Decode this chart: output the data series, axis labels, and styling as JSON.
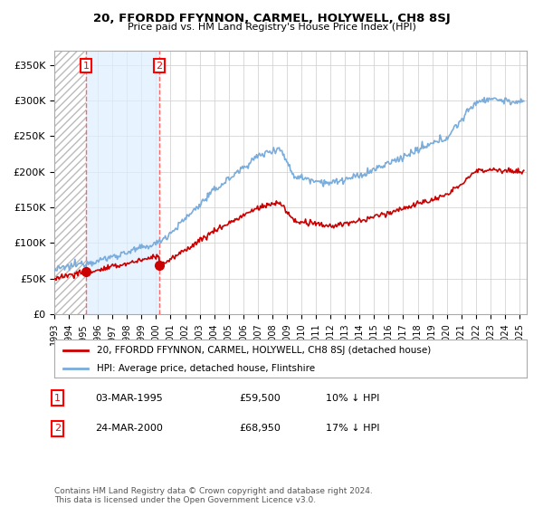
{
  "title": "20, FFORDD FFYNNON, CARMEL, HOLYWELL, CH8 8SJ",
  "subtitle": "Price paid vs. HM Land Registry's House Price Index (HPI)",
  "legend_line1": "20, FFORDD FFYNNON, CARMEL, HOLYWELL, CH8 8SJ (detached house)",
  "legend_line2": "HPI: Average price, detached house, Flintshire",
  "sale1_label": "1",
  "sale1_date": "03-MAR-1995",
  "sale1_price": "£59,500",
  "sale1_pct": "10% ↓ HPI",
  "sale1_year": 1995.17,
  "sale1_value": 59500,
  "sale2_label": "2",
  "sale2_date": "24-MAR-2000",
  "sale2_price": "£68,950",
  "sale2_pct": "17% ↓ HPI",
  "sale2_year": 2000.23,
  "sale2_value": 68950,
  "hpi_color": "#7aaddc",
  "price_color": "#cc0000",
  "marker_color": "#cc0000",
  "vline_color": "#ff6666",
  "shade_color": "#ddeeff",
  "grid_color": "#cccccc",
  "bg_color": "#ffffff",
  "footer": "Contains HM Land Registry data © Crown copyright and database right 2024.\nThis data is licensed under the Open Government Licence v3.0.",
  "ylim": [
    0,
    370000
  ],
  "xlim_start": 1993,
  "xlim_end": 2025.5,
  "yticks": [
    0,
    50000,
    100000,
    150000,
    200000,
    250000,
    300000,
    350000
  ],
  "ylabels": [
    "£0",
    "£50K",
    "£100K",
    "£150K",
    "£200K",
    "£250K",
    "£300K",
    "£350K"
  ]
}
